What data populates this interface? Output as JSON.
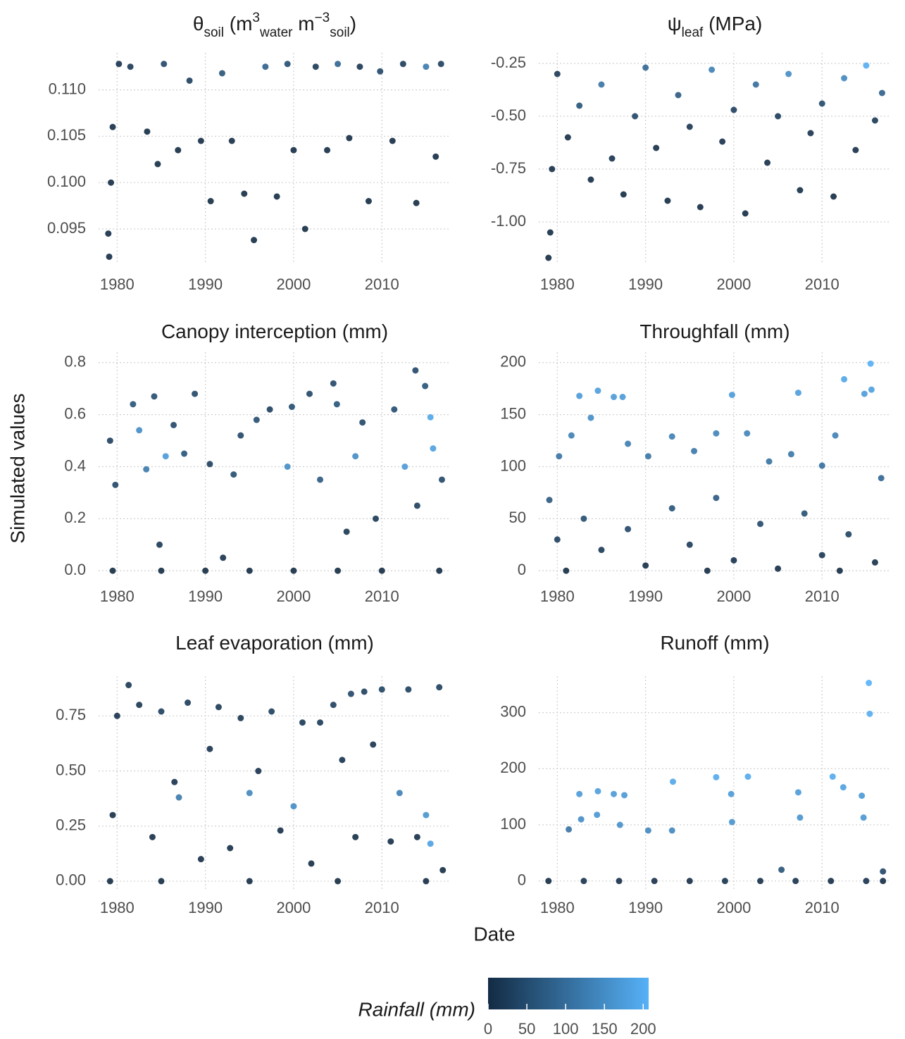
{
  "figure": {
    "ylabel": "Simulated values",
    "xlabel": "Date",
    "colorbar": {
      "title": "Rainfall (mm)",
      "limits": [
        0,
        207
      ],
      "ticks": [
        0,
        50,
        100,
        150,
        200
      ],
      "colors": [
        "#132B43",
        "#56B1F7"
      ]
    }
  },
  "chart_data": [
    {
      "type": "scatter",
      "grid": true,
      "title": [
        {
          "text": "θ"
        },
        {
          "text": "soil",
          "shift": "sub"
        },
        {
          "text": " (m"
        },
        {
          "text": "3",
          "shift": "super"
        },
        {
          "text": "water",
          "shift": "sub"
        },
        {
          "text": " m"
        },
        {
          "text": "−3",
          "shift": "super"
        },
        {
          "text": "soil",
          "shift": "sub"
        },
        {
          "text": ")"
        }
      ],
      "xlim": [
        1977.9,
        2017.8
      ],
      "xticks": [
        1980,
        1990,
        2000,
        2010
      ],
      "ylim": [
        0.0912,
        0.114
      ],
      "yticks": [
        0.095,
        {
          "value": 0.1,
          "label": "0.100"
        },
        0.105,
        {
          "value": 0.11,
          "label": "0.110"
        }
      ],
      "x": [
        1979.1,
        1979.0,
        1979.3,
        1979.5,
        1980.2,
        1981.5,
        1983.4,
        1984.6,
        1985.3,
        1986.9,
        1988.2,
        1989.5,
        1990.6,
        1991.9,
        1993.0,
        1994.4,
        1995.5,
        1996.8,
        1998.1,
        1999.3,
        2000.0,
        2001.3,
        2002.5,
        2003.8,
        2005.0,
        2006.3,
        2007.5,
        2008.5,
        2009.8,
        2011.2,
        2012.4,
        2013.9,
        2015.0,
        2016.1,
        2016.7
      ],
      "values": [
        0.092,
        0.0945,
        0.1,
        0.106,
        0.1128,
        0.1125,
        0.1055,
        0.102,
        0.1128,
        0.1035,
        0.111,
        0.1045,
        0.098,
        0.1118,
        0.1045,
        0.0988,
        0.0938,
        0.1125,
        0.0985,
        0.1128,
        0.1035,
        0.095,
        0.1125,
        0.1035,
        0.1128,
        0.1048,
        0.1125,
        0.098,
        0.112,
        0.1045,
        0.1128,
        0.0978,
        0.1125,
        0.1028,
        0.1128
      ],
      "rainfall": [
        0,
        2,
        1,
        5,
        10,
        20,
        0,
        1,
        40,
        0,
        30,
        0,
        0,
        60,
        2,
        0,
        0,
        80,
        0,
        50,
        0,
        0,
        20,
        1,
        90,
        0,
        15,
        0,
        40,
        0,
        25,
        0,
        120,
        0,
        30
      ]
    },
    {
      "type": "scatter",
      "grid": true,
      "title": [
        {
          "text": "ψ"
        },
        {
          "text": "leaf",
          "shift": "sub"
        },
        {
          "text": " (MPa)"
        }
      ],
      "xlim": [
        1977.9,
        2017.8
      ],
      "xticks": [
        1980,
        1990,
        2000,
        2010
      ],
      "ylim": [
        -1.2,
        -0.2
      ],
      "yticks": [
        {
          "value": -1,
          "label": "-1.00"
        },
        -0.75,
        {
          "value": -0.5,
          "label": "-0.50"
        },
        -0.25
      ],
      "x": [
        1979.0,
        1979.2,
        1979.4,
        1980.0,
        1981.2,
        1982.5,
        1983.8,
        1985.0,
        1986.2,
        1987.5,
        1988.8,
        1990.0,
        1991.2,
        1992.5,
        1993.7,
        1995.0,
        1996.2,
        1997.5,
        1998.7,
        2000.0,
        2001.3,
        2002.5,
        2003.8,
        2005.0,
        2006.2,
        2007.5,
        2008.7,
        2010.0,
        2011.3,
        2012.5,
        2013.8,
        2015.0,
        2016.0,
        2016.8
      ],
      "values": [
        -1.17,
        -1.05,
        -0.75,
        -0.3,
        -0.6,
        -0.45,
        -0.8,
        -0.35,
        -0.7,
        -0.87,
        -0.5,
        -0.27,
        -0.65,
        -0.9,
        -0.4,
        -0.55,
        -0.93,
        -0.28,
        -0.62,
        -0.47,
        -0.96,
        -0.35,
        -0.72,
        -0.5,
        -0.3,
        -0.85,
        -0.58,
        -0.44,
        -0.88,
        -0.32,
        -0.66,
        -0.26,
        -0.52,
        -0.39
      ],
      "rainfall": [
        0,
        1,
        3,
        20,
        5,
        60,
        2,
        110,
        10,
        0,
        40,
        90,
        3,
        0,
        70,
        15,
        0,
        130,
        8,
        30,
        0,
        100,
        4,
        25,
        150,
        1,
        12,
        45,
        0,
        140,
        6,
        200,
        20,
        80
      ]
    },
    {
      "type": "scatter",
      "grid": true,
      "title": [
        {
          "text": "Canopy interception (mm)"
        }
      ],
      "xlim": [
        1977.9,
        2017.8
      ],
      "xticks": [
        1980,
        1990,
        2000,
        2010
      ],
      "ylim": [
        -0.04,
        0.84
      ],
      "yticks": [
        {
          "value": 0,
          "label": "0.0"
        },
        0.2,
        0.4,
        0.6,
        0.8
      ],
      "x": [
        1979.5,
        1985,
        1990,
        1995,
        2000,
        2005,
        2010,
        2016.5,
        1979.2,
        1979.8,
        1981.8,
        1982.5,
        1983.3,
        1984.2,
        1985.5,
        1986.4,
        1987.6,
        1988.8,
        1990.5,
        1993.2,
        1994.0,
        1995.8,
        1997.3,
        1999.3,
        1999.8,
        2001.8,
        2003.0,
        2004.5,
        2004.9,
        2007.0,
        2007.8,
        2009.3,
        2011.4,
        2012.6,
        2013.8,
        2014.9,
        2015.5,
        2015.8,
        2016.8,
        1984.8,
        1992.0,
        2006.0,
        2014.0
      ],
      "values": [
        0,
        0,
        0,
        0,
        0,
        0,
        0,
        0,
        0.5,
        0.33,
        0.64,
        0.54,
        0.39,
        0.67,
        0.44,
        0.56,
        0.45,
        0.68,
        0.41,
        0.37,
        0.52,
        0.58,
        0.62,
        0.4,
        0.63,
        0.68,
        0.35,
        0.72,
        0.64,
        0.44,
        0.57,
        0.2,
        0.62,
        0.4,
        0.77,
        0.71,
        0.59,
        0.47,
        0.35,
        0.1,
        0.05,
        0.15,
        0.25
      ],
      "rainfall": [
        0,
        0,
        0,
        0,
        0,
        0,
        0,
        0,
        30,
        40,
        60,
        150,
        120,
        50,
        170,
        40,
        60,
        40,
        30,
        50,
        40,
        50,
        30,
        150,
        50,
        40,
        70,
        40,
        60,
        150,
        40,
        20,
        50,
        170,
        40,
        60,
        190,
        180,
        40,
        20,
        10,
        15,
        30
      ]
    },
    {
      "type": "scatter",
      "grid": true,
      "title": [
        {
          "text": "Throughfall (mm)"
        }
      ],
      "xlim": [
        1977.9,
        2017.8
      ],
      "xticks": [
        1980,
        1990,
        2000,
        2010
      ],
      "ylim": [
        -10,
        210
      ],
      "yticks": [
        0,
        50,
        100,
        150,
        200
      ],
      "x": [
        1979.1,
        1980.2,
        1981.6,
        1982.5,
        1983.8,
        1984.6,
        1986.4,
        1987.4,
        1988.0,
        1990.3,
        1993.0,
        1995.5,
        1998.0,
        1999.8,
        2001.5,
        2004.0,
        2006.5,
        2007.3,
        2010.0,
        2011.5,
        2012.5,
        2014.8,
        2015.5,
        2015.6,
        2016.7,
        1980,
        1983,
        1985,
        1988,
        1990,
        1993,
        1995,
        1998,
        2000,
        2003,
        2005,
        2008,
        2010,
        2013,
        2016,
        1981,
        1997,
        2012
      ],
      "values": [
        68,
        110,
        130,
        168,
        147,
        173,
        167,
        167,
        122,
        110,
        129,
        115,
        132,
        169,
        132,
        105,
        112,
        171,
        101,
        130,
        184,
        170,
        199,
        174,
        89,
        30,
        50,
        20,
        40,
        5,
        60,
        25,
        70,
        10,
        45,
        2,
        55,
        15,
        35,
        8,
        0,
        0,
        0
      ],
      "rainfall": [
        70,
        110,
        130,
        170,
        150,
        175,
        170,
        170,
        125,
        112,
        130,
        117,
        135,
        172,
        135,
        108,
        115,
        175,
        103,
        132,
        188,
        172,
        203,
        178,
        90,
        30,
        50,
        20,
        40,
        5,
        60,
        25,
        70,
        10,
        45,
        2,
        55,
        15,
        35,
        8,
        0,
        0,
        0
      ]
    },
    {
      "type": "scatter",
      "grid": true,
      "title": [
        {
          "text": "Leaf evaporation (mm)"
        }
      ],
      "xlim": [
        1977.9,
        2017.8
      ],
      "xticks": [
        1980,
        1990,
        2000,
        2010
      ],
      "ylim": [
        -0.045,
        0.93
      ],
      "yticks": [
        {
          "value": 0,
          "label": "0.00"
        },
        0.25,
        {
          "value": 0.5,
          "label": "0.50"
        },
        0.75
      ],
      "x": [
        1979.2,
        1979.5,
        1980.0,
        1981.3,
        1982.5,
        1984.0,
        1985.0,
        1986.5,
        1987.0,
        1988.0,
        1989.5,
        1990.5,
        1991.5,
        1992.8,
        1994.0,
        1995.0,
        1996.0,
        1997.5,
        1998.5,
        2000.0,
        2001.0,
        2002.0,
        2003.0,
        2004.5,
        2005.5,
        2006.5,
        2007.0,
        2008.0,
        2009.0,
        2010.0,
        2011.0,
        2012.0,
        2013.0,
        2014.0,
        2015.0,
        2015.5,
        2016.5,
        2016.9,
        1985,
        1995,
        2005,
        2015
      ],
      "values": [
        0,
        0.3,
        0.75,
        0.89,
        0.8,
        0.2,
        0.77,
        0.45,
        0.38,
        0.81,
        0.1,
        0.6,
        0.79,
        0.15,
        0.74,
        0.4,
        0.5,
        0.77,
        0.23,
        0.34,
        0.72,
        0.08,
        0.72,
        0.8,
        0.55,
        0.85,
        0.2,
        0.86,
        0.62,
        0.87,
        0.18,
        0.4,
        0.87,
        0.2,
        0.3,
        0.17,
        0.88,
        0.05,
        0,
        0,
        0,
        0
      ],
      "rainfall": [
        0,
        5,
        10,
        20,
        15,
        3,
        30,
        8,
        120,
        25,
        2,
        10,
        20,
        3,
        15,
        140,
        10,
        30,
        5,
        150,
        20,
        1,
        25,
        30,
        10,
        40,
        4,
        30,
        12,
        35,
        3,
        130,
        30,
        4,
        160,
        180,
        30,
        1,
        0,
        0,
        0,
        0
      ]
    },
    {
      "type": "scatter",
      "grid": true,
      "title": [
        {
          "text": "Runoff (mm)"
        }
      ],
      "xlim": [
        1977.9,
        2017.8
      ],
      "xticks": [
        1980,
        1990,
        2000,
        2010
      ],
      "ylim": [
        -18,
        365
      ],
      "yticks": [
        0,
        100,
        200,
        300
      ],
      "x": [
        1979,
        1983,
        1987,
        1991,
        1995,
        1999,
        2003,
        2007,
        2011,
        2015,
        2016.9,
        1981.3,
        1982.5,
        1982.7,
        1984.6,
        1984.5,
        1986.4,
        1987.1,
        1987.6,
        1990.3,
        1993.1,
        1993.0,
        1998.0,
        1999.7,
        1999.8,
        2001.6,
        2005.4,
        2007.3,
        2007.5,
        2011.2,
        2012.4,
        2014.7,
        2015.3,
        2015.4,
        2014.5,
        2016.9
      ],
      "values": [
        0,
        0,
        0,
        0,
        0,
        0,
        0,
        0,
        0,
        0,
        0,
        92,
        155,
        110,
        160,
        118,
        155,
        100,
        153,
        90,
        177,
        90,
        185,
        155,
        105,
        186,
        20,
        158,
        113,
        186,
        167,
        113,
        353,
        298,
        152,
        17
      ],
      "rainfall": [
        0,
        10,
        5,
        8,
        3,
        12,
        6,
        9,
        4,
        10,
        2,
        110,
        170,
        150,
        175,
        165,
        170,
        155,
        168,
        140,
        190,
        140,
        195,
        170,
        160,
        195,
        60,
        172,
        160,
        195,
        180,
        165,
        207,
        200,
        168,
        40
      ]
    }
  ]
}
